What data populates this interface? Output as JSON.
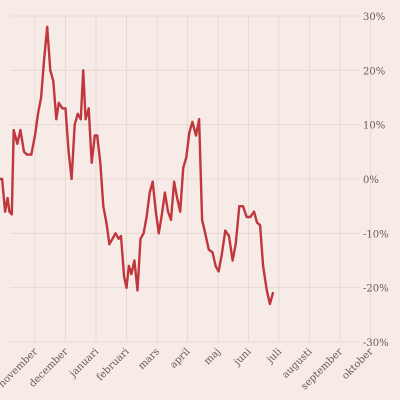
{
  "chart_data": {
    "type": "line",
    "title": "",
    "xlabel": "",
    "ylabel": "",
    "y_unit": "%",
    "ylim": [
      -30,
      30
    ],
    "y_ticks": [
      {
        "value": 30,
        "label": "30%"
      },
      {
        "value": 20,
        "label": "20%"
      },
      {
        "value": 10,
        "label": "10%"
      },
      {
        "value": 0,
        "label": "0%"
      },
      {
        "value": -10,
        "label": "-10%"
      },
      {
        "value": -20,
        "label": "-20%"
      },
      {
        "value": -30,
        "label": "-30%"
      }
    ],
    "y_axis_position": "right",
    "x_ticks": [
      {
        "index": 0,
        "label": "november"
      },
      {
        "index": 1,
        "label": "december"
      },
      {
        "index": 2,
        "label": "januari"
      },
      {
        "index": 3,
        "label": "februari"
      },
      {
        "index": 4,
        "label": "mars"
      },
      {
        "index": 5,
        "label": "april"
      },
      {
        "index": 6,
        "label": "maj"
      },
      {
        "index": 7,
        "label": "juni"
      },
      {
        "index": 8,
        "label": "juli"
      },
      {
        "index": 9,
        "label": "augusti"
      },
      {
        "index": 10,
        "label": "september"
      },
      {
        "index": 11,
        "label": "oktober"
      }
    ],
    "x_range": [
      -1.25,
      11.6
    ],
    "grid": true,
    "colors": {
      "background": "#f6ebe6",
      "line": "#c0373d",
      "grid": "#ead8d2",
      "text": "#6e5a55"
    },
    "series": [
      {
        "points": [
          [
            -1.18,
            0
          ],
          [
            -1.08,
            0
          ],
          [
            -0.98,
            -6
          ],
          [
            -0.9,
            -3.5
          ],
          [
            -0.84,
            -6
          ],
          [
            -0.76,
            -6.5
          ],
          [
            -0.7,
            9
          ],
          [
            -0.58,
            6.5
          ],
          [
            -0.48,
            9
          ],
          [
            -0.36,
            5
          ],
          [
            -0.26,
            4.5
          ],
          [
            -0.12,
            4.5
          ],
          [
            0,
            8
          ],
          [
            0.1,
            12
          ],
          [
            0.2,
            15
          ],
          [
            0.3,
            22
          ],
          [
            0.4,
            28
          ],
          [
            0.5,
            20
          ],
          [
            0.6,
            18
          ],
          [
            0.7,
            11
          ],
          [
            0.78,
            14
          ],
          [
            0.9,
            13
          ],
          [
            1.0,
            13
          ],
          [
            1.1,
            5
          ],
          [
            1.2,
            0
          ],
          [
            1.3,
            10
          ],
          [
            1.4,
            12
          ],
          [
            1.5,
            11
          ],
          [
            1.58,
            20
          ],
          [
            1.66,
            11
          ],
          [
            1.76,
            13
          ],
          [
            1.86,
            3
          ],
          [
            1.96,
            8
          ],
          [
            2.04,
            8
          ],
          [
            2.14,
            3
          ],
          [
            2.24,
            -5
          ],
          [
            2.34,
            -8
          ],
          [
            2.44,
            -12
          ],
          [
            2.54,
            -11
          ],
          [
            2.64,
            -10
          ],
          [
            2.74,
            -11
          ],
          [
            2.82,
            -10.5
          ],
          [
            2.92,
            -18
          ],
          [
            3.0,
            -20
          ],
          [
            3.08,
            -16
          ],
          [
            3.16,
            -17.5
          ],
          [
            3.26,
            -15
          ],
          [
            3.36,
            -20.5
          ],
          [
            3.46,
            -11
          ],
          [
            3.56,
            -10
          ],
          [
            3.66,
            -7
          ],
          [
            3.76,
            -2.5
          ],
          [
            3.86,
            -0.5
          ],
          [
            3.96,
            -6
          ],
          [
            4.06,
            -10
          ],
          [
            4.16,
            -6.5
          ],
          [
            4.26,
            -2.5
          ],
          [
            4.36,
            -6
          ],
          [
            4.46,
            -7.5
          ],
          [
            4.56,
            -0.5
          ],
          [
            4.66,
            -3.5
          ],
          [
            4.76,
            -6
          ],
          [
            4.86,
            2
          ],
          [
            4.96,
            4
          ],
          [
            5.06,
            8.5
          ],
          [
            5.16,
            10.5
          ],
          [
            5.28,
            8
          ],
          [
            5.38,
            11
          ],
          [
            5.48,
            -7.5
          ],
          [
            5.58,
            -10
          ],
          [
            5.7,
            -13
          ],
          [
            5.82,
            -13.5
          ],
          [
            5.92,
            -16
          ],
          [
            6.02,
            -17
          ],
          [
            6.12,
            -14
          ],
          [
            6.24,
            -9.5
          ],
          [
            6.36,
            -10.5
          ],
          [
            6.48,
            -15
          ],
          [
            6.58,
            -12
          ],
          [
            6.7,
            -5
          ],
          [
            6.82,
            -5
          ],
          [
            6.94,
            -7
          ],
          [
            7.06,
            -7
          ],
          [
            7.18,
            -6
          ],
          [
            7.28,
            -8
          ],
          [
            7.38,
            -8.5
          ],
          [
            7.48,
            -16
          ],
          [
            7.6,
            -20.5
          ],
          [
            7.7,
            -23
          ],
          [
            7.8,
            -21
          ]
        ]
      }
    ]
  }
}
